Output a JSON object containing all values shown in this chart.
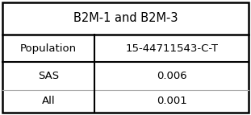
{
  "title": "B2M-1 and B2M-3",
  "col_headers": [
    "Population",
    "15-44711543-C-T"
  ],
  "rows": [
    [
      "SAS",
      "0.006"
    ],
    [
      "All",
      "0.001"
    ]
  ],
  "outer_border_color": "#000000",
  "inner_line_color": "#000000",
  "light_line_color": "#aaaaaa",
  "bg_color": "#ffffff",
  "title_fontsize": 10.5,
  "header_fontsize": 9.5,
  "cell_fontsize": 9.5,
  "fig_width": 3.11,
  "fig_height": 1.43,
  "dpi": 100
}
